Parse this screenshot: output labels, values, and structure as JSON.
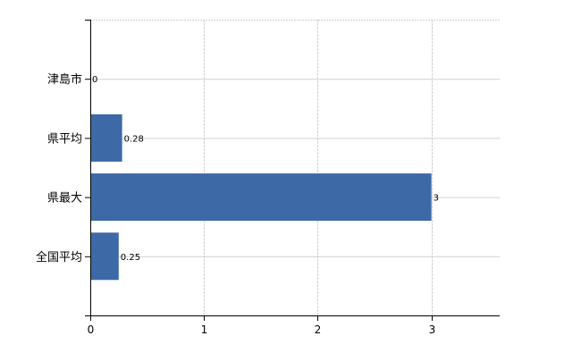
{
  "chart_data": {
    "type": "bar",
    "orientation": "horizontal",
    "categories": [
      "津島市",
      "県平均",
      "県最大",
      "全国平均"
    ],
    "values": [
      0,
      0.28,
      3,
      0.25
    ],
    "value_labels": [
      "0",
      "0.28",
      "3",
      "0.25"
    ],
    "title": "",
    "xlabel": "",
    "ylabel": "",
    "xlim": [
      0,
      3.6
    ],
    "xticks": [
      "0",
      "1",
      "2",
      "3"
    ],
    "grid": true,
    "colors": {
      "bar": "#3d6aa6",
      "grid": "#d0d0d0",
      "axis": "#000000",
      "value_label": "#000000"
    }
  }
}
